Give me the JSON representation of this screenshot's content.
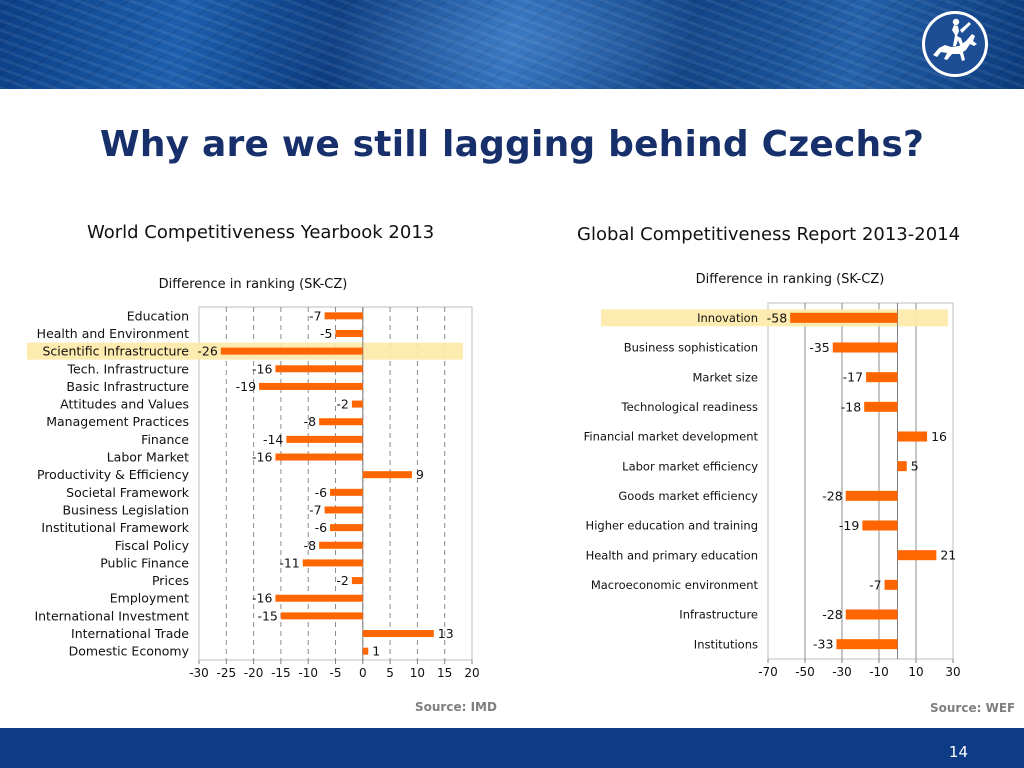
{
  "slide": {
    "title": "Why are we still lagging behind Czechs?",
    "page_number": "14",
    "colors": {
      "banner": "#0d3b86",
      "title": "#17306b",
      "bar": "#ff6600",
      "highlight": "#fde9a6"
    },
    "logo_icon": "horse-rider-logo-icon"
  },
  "left": {
    "heading": "World Competitiveness Yearbook 2013",
    "source": "Source: IMD"
  },
  "right": {
    "heading": "Global Competitiveness Report 2013-2014",
    "source": "Source: WEF"
  },
  "chart_data": [
    {
      "type": "bar",
      "orientation": "horizontal",
      "title": "Difference in ranking (SK-CZ)",
      "categories": [
        "Education",
        "Health and Environment",
        "Scientific Infrastructure",
        "Tech. Infrastructure",
        "Basic Infrastructure",
        "Attitudes and Values",
        "Management Practices",
        "Finance",
        "Labor Market",
        "Productivity & Efficiency",
        "Societal Framework",
        "Business Legislation",
        "Institutional Framework",
        "Fiscal Policy",
        "Public Finance",
        "Prices",
        "Employment",
        "International Investment",
        "International Trade",
        "Domestic Economy"
      ],
      "values": [
        -7,
        -5,
        -26,
        -16,
        -19,
        -2,
        -8,
        -14,
        -16,
        9,
        -6,
        -7,
        -6,
        -8,
        -11,
        -2,
        -16,
        -15,
        13,
        1
      ],
      "xlim": [
        -30,
        20
      ],
      "xticks": [
        -30,
        -25,
        -20,
        -15,
        -10,
        -5,
        0,
        5,
        10,
        15,
        20
      ],
      "xlabel": "",
      "ylabel": "",
      "highlighted_category": "Scientific Infrastructure",
      "grid": "vertical dashed"
    },
    {
      "type": "bar",
      "orientation": "horizontal",
      "title": "Difference in ranking (SK-CZ)",
      "categories": [
        "Innovation",
        "Business sophistication",
        "Market size",
        "Technological readiness",
        "Financial market development",
        "Labor market efficiency",
        "Goods market efficiency",
        "Higher education and training",
        "Health and primary education",
        "Macroeconomic environment",
        "Infrastructure",
        "Institutions"
      ],
      "values": [
        -58,
        -35,
        -17,
        -18,
        16,
        5,
        -28,
        -19,
        21,
        -7,
        -28,
        -33
      ],
      "xlim": [
        -70,
        30
      ],
      "xticks": [
        -70,
        -50,
        -30,
        -10,
        10,
        30
      ],
      "xlabel": "",
      "ylabel": "",
      "highlighted_category": "Innovation",
      "grid": "vertical solid"
    }
  ]
}
